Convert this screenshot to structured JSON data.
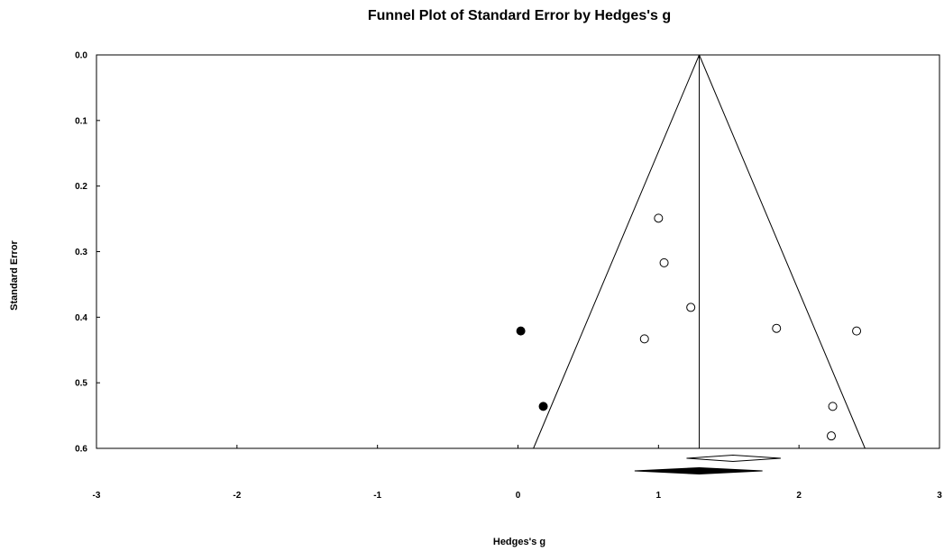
{
  "chart_data": {
    "type": "scatter",
    "title": "Funnel Plot of Standard Error by Hedges's g",
    "xlabel": "Hedges's g",
    "ylabel": "Standard Error",
    "xlim": [
      -3,
      3
    ],
    "ylim": [
      0.0,
      0.6
    ],
    "y_inverted": true,
    "x_ticks": [
      "-3",
      "-2",
      "-1",
      "0",
      "1",
      "2",
      "3"
    ],
    "y_ticks": [
      "0.0",
      "0.1",
      "0.2",
      "0.3",
      "0.4",
      "0.5",
      "0.6"
    ],
    "grid": false,
    "combined_effect": 1.29,
    "funnel_limits_at_max_se": [
      0.11,
      2.47
    ],
    "series": [
      {
        "marker": "open-circle",
        "points": [
          {
            "x": 1.0,
            "y": 0.249
          },
          {
            "x": 1.04,
            "y": 0.317
          },
          {
            "x": 1.23,
            "y": 0.385
          },
          {
            "x": 0.9,
            "y": 0.433
          },
          {
            "x": 1.84,
            "y": 0.417
          },
          {
            "x": 2.41,
            "y": 0.421
          },
          {
            "x": 2.24,
            "y": 0.536
          },
          {
            "x": 2.23,
            "y": 0.581
          }
        ]
      },
      {
        "marker": "filled-circle",
        "points": [
          {
            "x": 0.02,
            "y": 0.421
          },
          {
            "x": 0.18,
            "y": 0.536
          }
        ]
      }
    ],
    "summary_diamonds": [
      {
        "marker": "open-diamond",
        "estimate": 1.53,
        "lower": 1.2,
        "upper": 1.87
      },
      {
        "marker": "filled-diamond",
        "estimate": 1.29,
        "lower": 0.83,
        "upper": 1.74
      }
    ]
  }
}
